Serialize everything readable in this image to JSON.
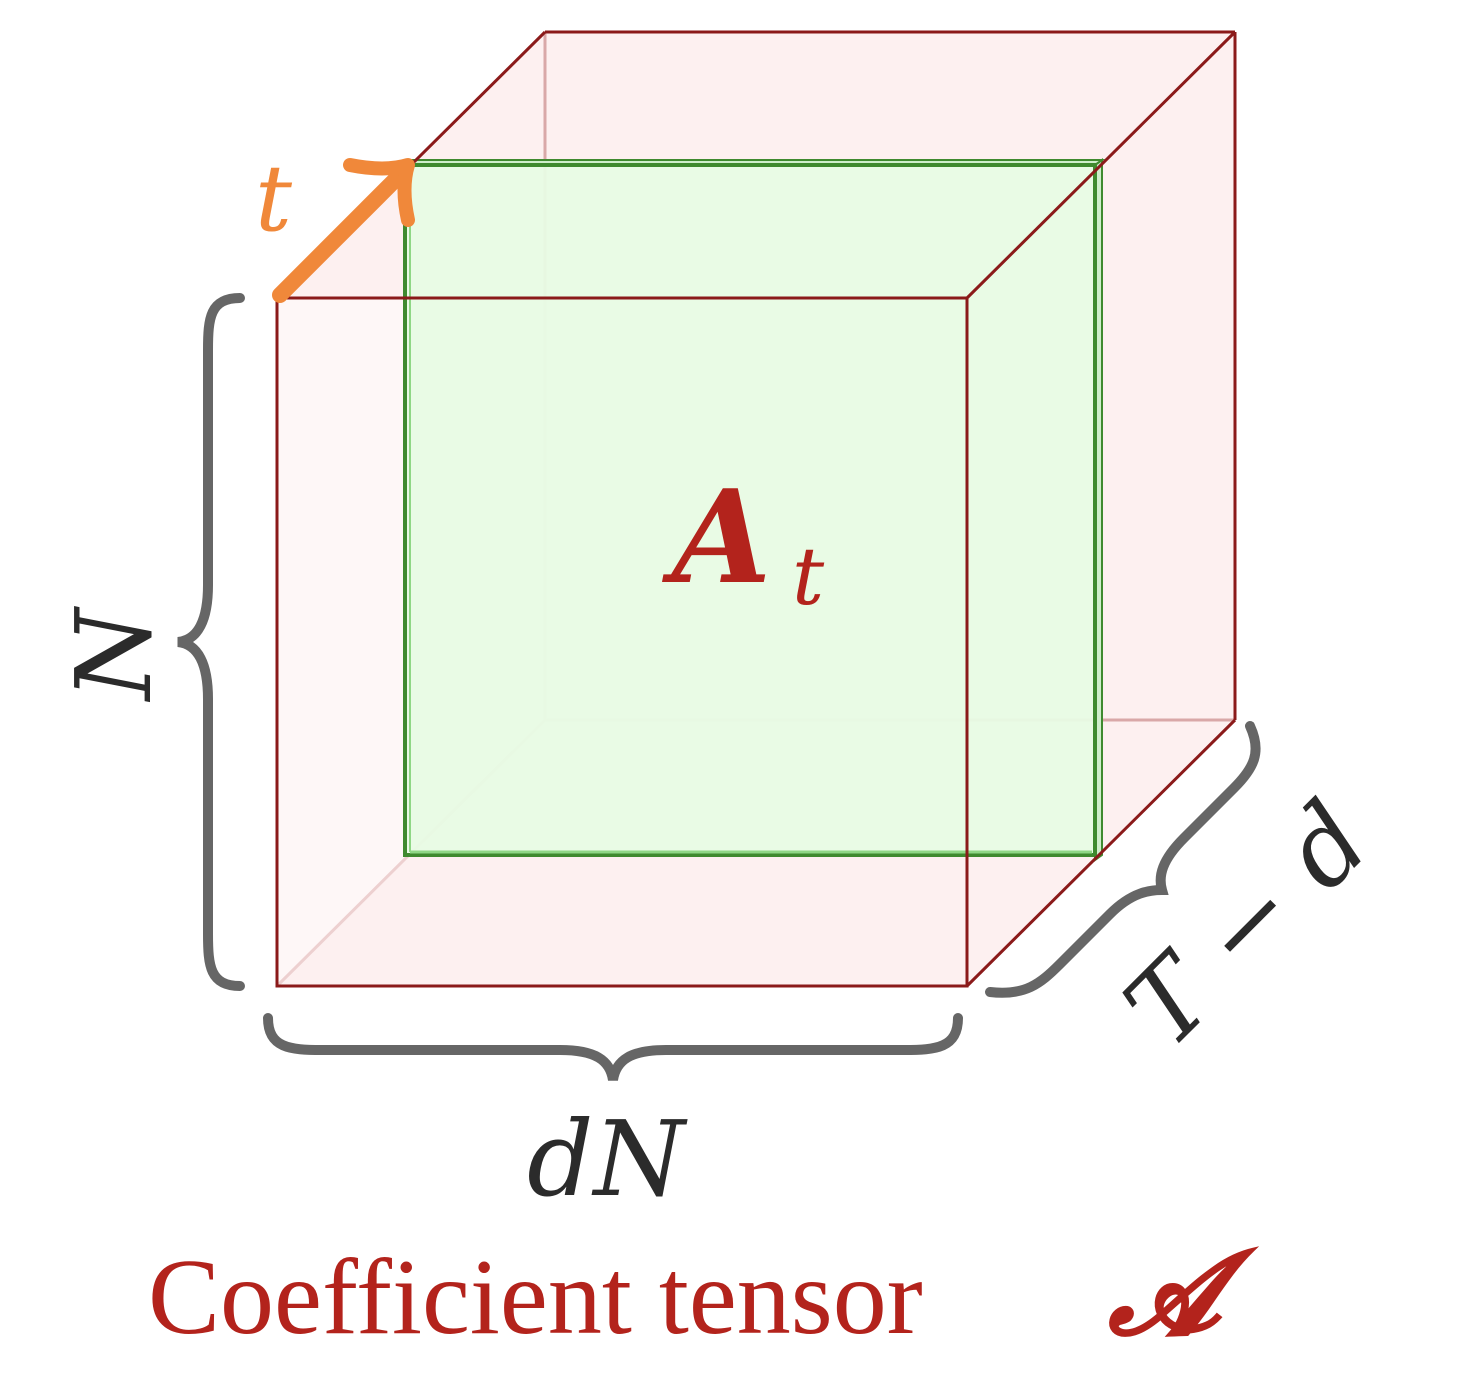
{
  "diagram": {
    "slice_label": {
      "main": "A",
      "sub": "t"
    },
    "direction_label": "t",
    "dim_height": "N",
    "dim_width": "dN",
    "dim_depth": "T − d",
    "caption": {
      "text": "Coefficient tensor",
      "symbol": "𝓐"
    }
  },
  "colors": {
    "cube_edge": "#8b1a1a",
    "cube_fill": "#fdf0f0",
    "cube_hidden_edge": "#d9a8a8",
    "slice_edge": "#3f8a2f",
    "slice_fill": "#e8fbe4",
    "arrow": "#f0883a",
    "brace": "#666666",
    "label_dark": "#2b2b2b",
    "label_red": "#b3231c"
  }
}
